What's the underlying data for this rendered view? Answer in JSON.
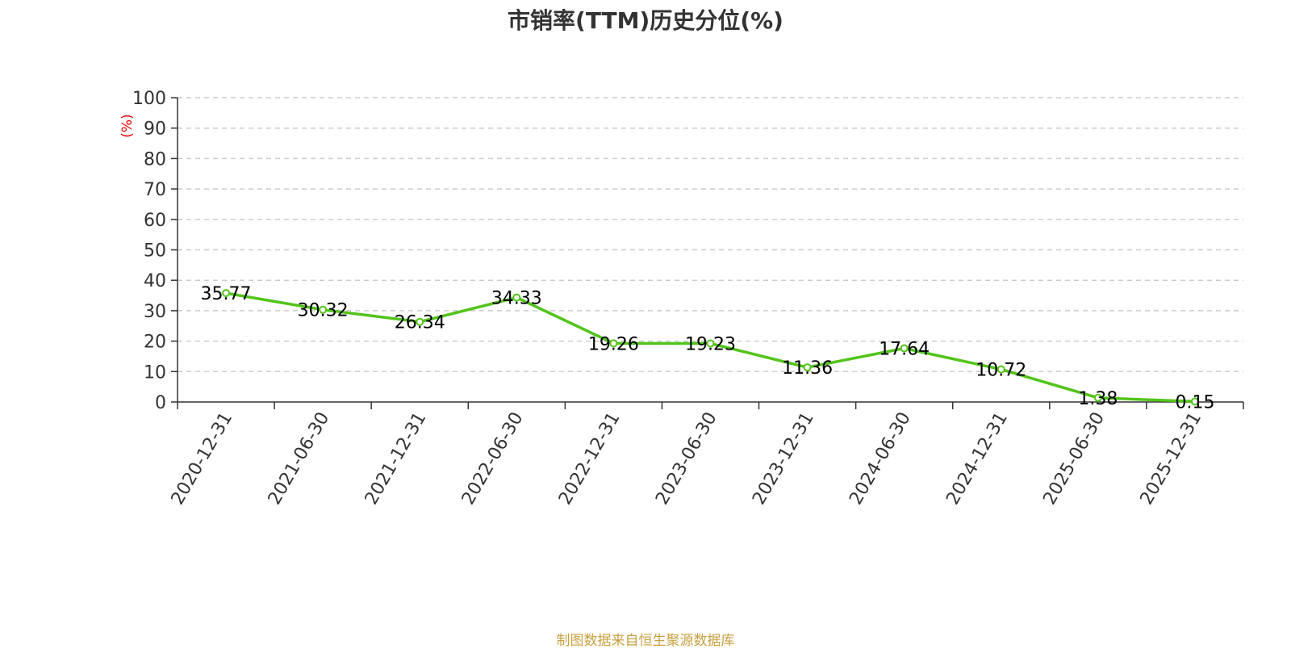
{
  "footer": {
    "source": "制图数据来自恒生聚源数据库"
  },
  "colors": {
    "line": "#52c41a",
    "axis": "#333333",
    "grid": "#cccccc",
    "unit": "#e60000",
    "footer": "#c8a040"
  },
  "chart_data": {
    "type": "line",
    "title": "市销率(TTM)历史分位(%)",
    "ylabel": "(%)",
    "xlabel": "",
    "ylim": [
      0,
      100
    ],
    "yticks": [
      0,
      10,
      20,
      30,
      40,
      50,
      60,
      70,
      80,
      90,
      100
    ],
    "categories": [
      "2020-12-31",
      "2021-06-30",
      "2021-12-31",
      "2022-06-30",
      "2022-12-31",
      "2023-06-30",
      "2023-12-31",
      "2024-06-30",
      "2024-12-31",
      "2025-06-30",
      "2025-12-31"
    ],
    "series": [
      {
        "values": [
          35.77,
          30.32,
          26.34,
          34.33,
          19.26,
          19.23,
          11.36,
          17.64,
          10.72,
          1.38,
          0.15
        ]
      }
    ],
    "grid": true,
    "legend": "none"
  }
}
